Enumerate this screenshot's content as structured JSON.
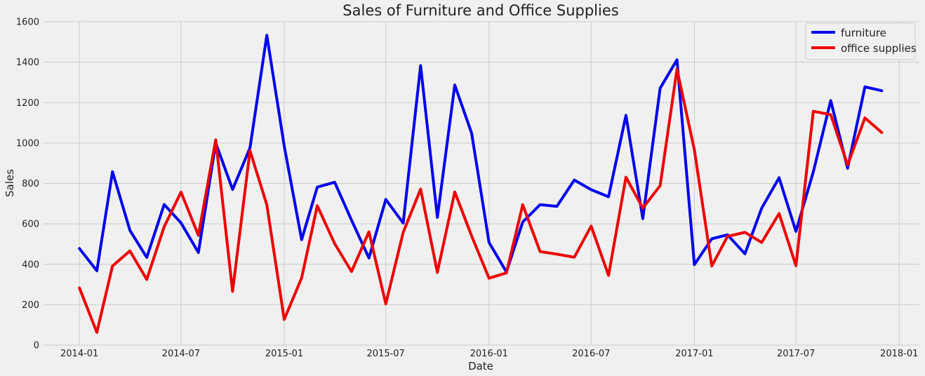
{
  "chart_data": {
    "type": "line",
    "title": "Sales of Furniture and Office Supplies",
    "xlabel": "Date",
    "ylabel": "Sales",
    "x_axis": "monthly dates",
    "x": [
      "2014-01",
      "2014-02",
      "2014-03",
      "2014-04",
      "2014-05",
      "2014-06",
      "2014-07",
      "2014-08",
      "2014-09",
      "2014-10",
      "2014-11",
      "2014-12",
      "2015-01",
      "2015-02",
      "2015-03",
      "2015-04",
      "2015-05",
      "2015-06",
      "2015-07",
      "2015-08",
      "2015-09",
      "2015-10",
      "2015-11",
      "2015-12",
      "2016-01",
      "2016-02",
      "2016-03",
      "2016-04",
      "2016-05",
      "2016-06",
      "2016-07",
      "2016-08",
      "2016-09",
      "2016-10",
      "2016-11",
      "2016-12",
      "2017-01",
      "2017-02",
      "2017-03",
      "2017-04",
      "2017-05",
      "2017-06",
      "2017-07",
      "2017-08",
      "2017-09",
      "2017-10",
      "2017-11",
      "2017-12"
    ],
    "xticks": [
      "2014-01",
      "2014-07",
      "2015-01",
      "2015-07",
      "2016-01",
      "2016-07",
      "2017-01",
      "2017-07",
      "2018-01"
    ],
    "xlim": [
      "2013-10-29",
      "2018-02-06"
    ],
    "ylim": [
      0,
      1600
    ],
    "yticks": [
      0,
      200,
      400,
      600,
      800,
      1000,
      1200,
      1400,
      1600
    ],
    "grid": true,
    "legend_position": "top-right",
    "series": [
      {
        "name": "furniture",
        "color": "#0000ee",
        "values": [
          478,
          368,
          858,
          568,
          434,
          696,
          605,
          458,
          1000,
          770,
          976,
          1533,
          985,
          522,
          782,
          806,
          618,
          431,
          721,
          604,
          1383,
          632,
          1287,
          1049,
          508,
          362,
          609,
          695,
          687,
          817,
          769,
          734,
          1137,
          626,
          1271,
          1412,
          398,
          526,
          546,
          452,
          678,
          828,
          563,
          858,
          1210,
          875,
          1278,
          1259
        ]
      },
      {
        "name": "office supplies",
        "color": "#ee0000",
        "values": [
          283,
          63,
          392,
          466,
          325,
          586,
          757,
          543,
          1016,
          266,
          962,
          694,
          127,
          333,
          690,
          502,
          364,
          561,
          204,
          558,
          772,
          360,
          758,
          540,
          331,
          357,
          695,
          463,
          450,
          435,
          589,
          345,
          831,
          678,
          789,
          1365,
          966,
          391,
          538,
          558,
          508,
          651,
          393,
          1157,
          1140,
          891,
          1124,
          1052
        ]
      }
    ]
  }
}
